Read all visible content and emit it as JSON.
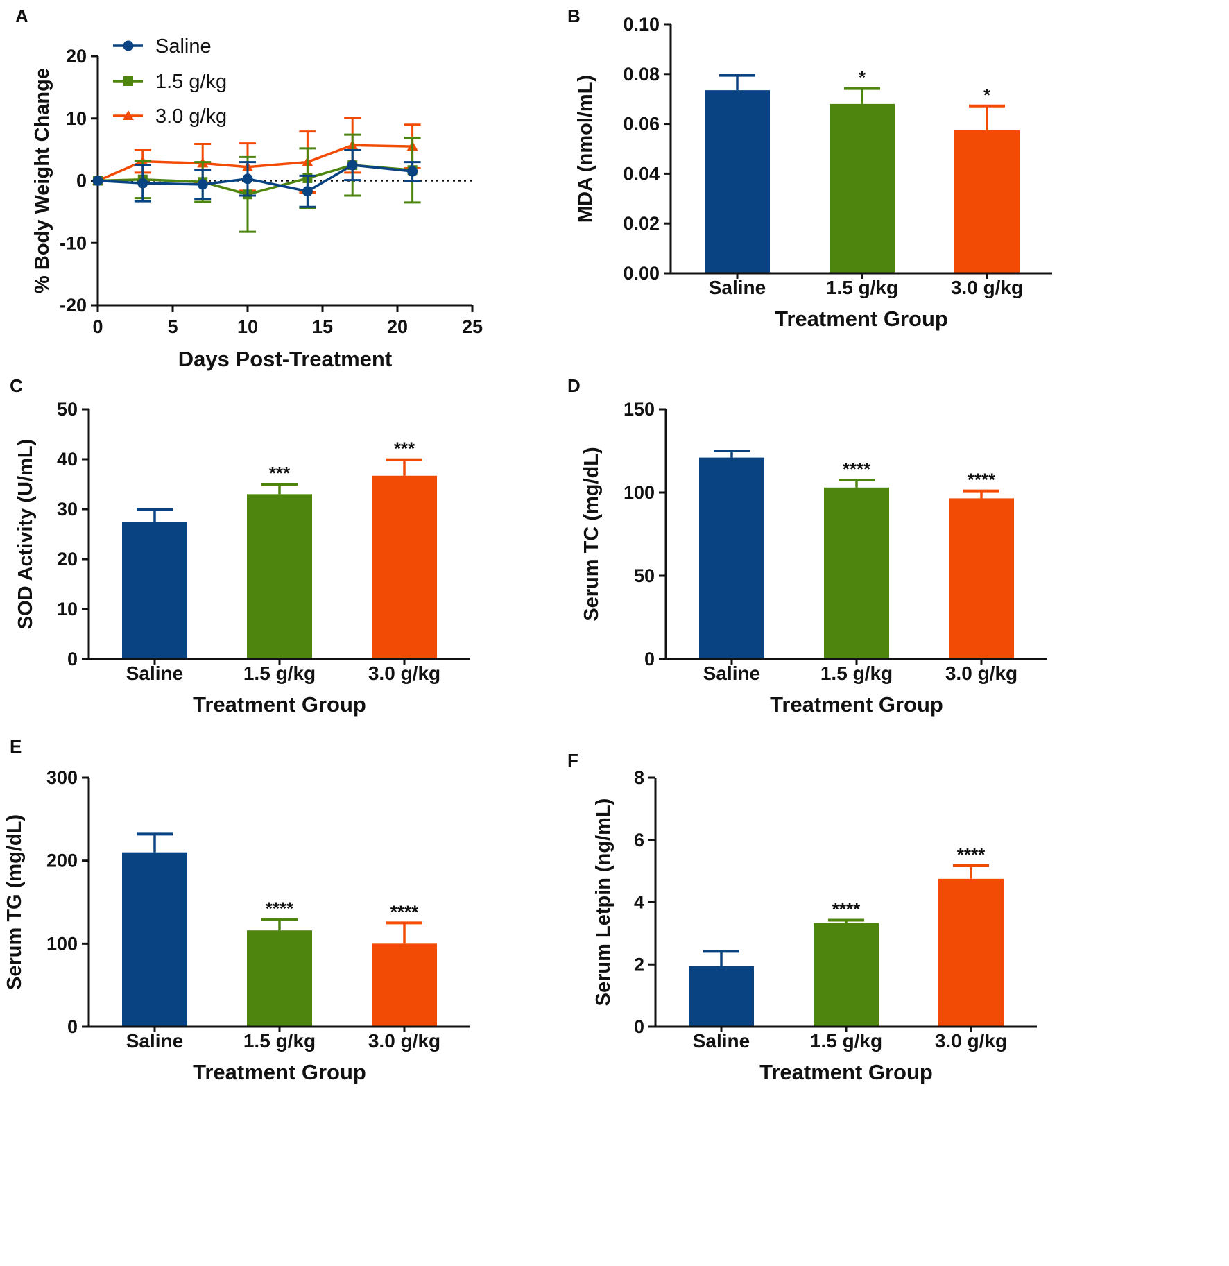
{
  "colors": {
    "saline": "#0a4381",
    "low": "#4e850f",
    "high": "#f24b05",
    "axis": "#111111"
  },
  "chart_data": [
    {
      "id": "A",
      "panel_label": "A",
      "type": "line",
      "title": "",
      "xlabel": "Days Post-Treatment",
      "ylabel": "% Body Weight Change",
      "xlim": [
        0,
        25
      ],
      "ylim": [
        -20,
        20
      ],
      "x_ticks": [
        0,
        5,
        10,
        15,
        20,
        25
      ],
      "y_ticks": [
        -20,
        -10,
        0,
        10,
        20
      ],
      "reference_line_y": 0,
      "legend": {
        "position": "top-left"
      },
      "x": [
        0,
        3,
        7,
        10,
        14,
        17,
        21
      ],
      "series": [
        {
          "name": "Saline",
          "marker": "circle",
          "color_key": "saline",
          "values": [
            0,
            -0.4,
            -0.6,
            0.3,
            -1.7,
            2.5,
            1.5
          ],
          "error": [
            0,
            2.9,
            2.3,
            2.7,
            2.5,
            2.4,
            1.5
          ]
        },
        {
          "name": "1.5 g/kg",
          "marker": "square",
          "color_key": "low",
          "values": [
            0,
            0.2,
            -0.2,
            -2.2,
            0.4,
            2.5,
            1.7
          ],
          "error": [
            0,
            3.0,
            3.2,
            6.0,
            4.8,
            4.9,
            5.2
          ]
        },
        {
          "name": "3.0 g/kg",
          "marker": "triangle",
          "color_key": "high",
          "values": [
            0,
            3.1,
            2.8,
            2.2,
            3.0,
            5.7,
            5.5
          ],
          "error": [
            0,
            1.8,
            3.1,
            3.8,
            4.9,
            4.4,
            3.5
          ]
        }
      ]
    },
    {
      "id": "B",
      "panel_label": "B",
      "type": "bar",
      "xlabel": "Treatment Group",
      "ylabel": "MDA (nmol/mL)",
      "ylim": [
        0,
        0.1
      ],
      "y_ticks": [
        "0.00",
        "0.02",
        "0.04",
        "0.06",
        "0.08",
        "0.10"
      ],
      "categories": [
        "Saline",
        "1.5 g/kg",
        "3.0 g/kg"
      ],
      "values": [
        0.0735,
        0.068,
        0.0575
      ],
      "error": [
        0.006,
        0.0062,
        0.0097
      ],
      "significance": [
        "",
        "*",
        "*"
      ]
    },
    {
      "id": "C",
      "panel_label": "C",
      "type": "bar",
      "xlabel": "Treatment Group",
      "ylabel": "SOD Activity (U/mL)",
      "ylim": [
        0,
        50
      ],
      "y_ticks": [
        "0",
        "10",
        "20",
        "30",
        "40",
        "50"
      ],
      "categories": [
        "Saline",
        "1.5 g/kg",
        "3.0 g/kg"
      ],
      "values": [
        27.5,
        33.0,
        36.7
      ],
      "error": [
        2.5,
        2.0,
        3.2
      ],
      "significance": [
        "",
        "***",
        "***"
      ]
    },
    {
      "id": "D",
      "panel_label": "D",
      "type": "bar",
      "xlabel": "Treatment Group",
      "ylabel": "Serum TC (mg/dL)",
      "ylim": [
        0,
        150
      ],
      "y_ticks": [
        "0",
        "50",
        "100",
        "150"
      ],
      "categories": [
        "Saline",
        "1.5 g/kg",
        "3.0 g/kg"
      ],
      "values": [
        121,
        103,
        96.5
      ],
      "error": [
        4,
        4.5,
        4.5
      ],
      "significance": [
        "",
        "****",
        "****"
      ]
    },
    {
      "id": "E",
      "panel_label": "E",
      "type": "bar",
      "xlabel": "Treatment Group",
      "ylabel": "Serum TG (mg/dL)",
      "ylim": [
        0,
        300
      ],
      "y_ticks": [
        "0",
        "100",
        "200",
        "300"
      ],
      "categories": [
        "Saline",
        "1.5 g/kg",
        "3.0 g/kg"
      ],
      "values": [
        210,
        116,
        100
      ],
      "error": [
        22,
        13,
        25
      ],
      "significance": [
        "",
        "****",
        "****"
      ]
    },
    {
      "id": "F",
      "panel_label": "F",
      "type": "bar",
      "xlabel": "Treatment Group",
      "ylabel": "Serum Letpin (ng/mL)",
      "ylim": [
        0,
        8
      ],
      "y_ticks": [
        "0",
        "2",
        "4",
        "6",
        "8"
      ],
      "categories": [
        "Saline",
        "1.5 g/kg",
        "3.0 g/kg"
      ],
      "values": [
        1.95,
        3.33,
        4.75
      ],
      "error": [
        0.47,
        0.09,
        0.42
      ],
      "significance": [
        "",
        "****",
        "****"
      ]
    }
  ]
}
